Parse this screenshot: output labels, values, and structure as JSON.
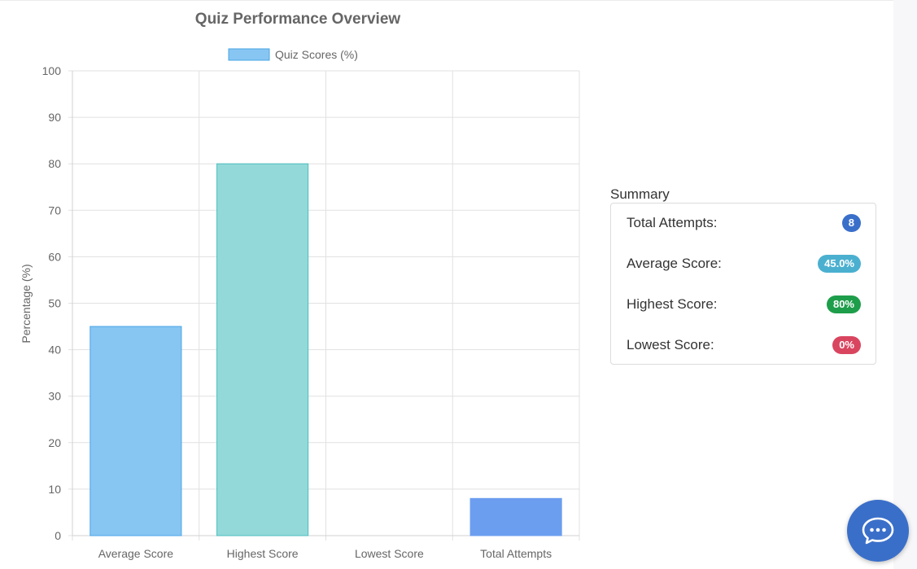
{
  "chart_data": {
    "type": "bar",
    "title": "Quiz Performance Overview",
    "legend": {
      "label": "Quiz Scores (%)",
      "position": "top"
    },
    "ylabel": "Percentage (%)",
    "xlabel": "",
    "categories": [
      "Average Score",
      "Highest Score",
      "Lowest Score",
      "Total Attempts"
    ],
    "series": [
      {
        "name": "Quiz Scores (%)",
        "values": [
          45,
          80,
          0,
          8
        ],
        "fill_colors": [
          "#87c5f3",
          "#93d9d9",
          "#fbc1c9",
          "#6c9ef0"
        ],
        "border_colors": [
          "#4aa6e6",
          "#4cbfbf",
          "#ff6384",
          "#6c9ef0"
        ]
      }
    ],
    "ylim": [
      0,
      100
    ],
    "yticks": [
      0,
      10,
      20,
      30,
      40,
      50,
      60,
      70,
      80,
      90,
      100
    ],
    "grid": true
  },
  "summary": {
    "title": "Summary",
    "items": [
      {
        "label": "Total Attempts:",
        "value": "8",
        "color": "#3a6fc9"
      },
      {
        "label": "Average Score:",
        "value": "45.0%",
        "color": "#4bb0d0"
      },
      {
        "label": "Highest Score:",
        "value": "80%",
        "color": "#1e9e4a"
      },
      {
        "label": "Lowest Score:",
        "value": "0%",
        "color": "#d9455f"
      }
    ]
  },
  "chat_button": {
    "icon": "chat-bubble-icon",
    "color": "#3a6fc9"
  }
}
